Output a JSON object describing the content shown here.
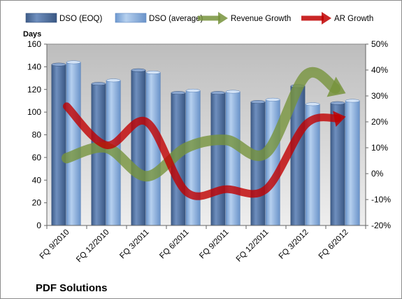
{
  "chart_data": {
    "type": "bar",
    "title": "PDF Solutions",
    "ylabel_left": "Days",
    "ylim_left": [
      0,
      160
    ],
    "yticks_left": [
      "0",
      "20",
      "40",
      "60",
      "80",
      "100",
      "120",
      "140",
      "160"
    ],
    "ylim_right": [
      -0.2,
      0.5
    ],
    "yticks_right": [
      "-20%",
      "-10%",
      "0%",
      "10%",
      "20%",
      "30%",
      "40%",
      "50%"
    ],
    "legend_position": "top",
    "grid": false,
    "categories": [
      "FQ 9/2010",
      "FQ 12/2010",
      "FQ 3/2011",
      "FQ 6/2011",
      "FQ 9/2011",
      "FQ 12/2011",
      "FQ 3/2012",
      "FQ 6/2012"
    ],
    "series": [
      {
        "name": "DSO (EOQ)",
        "type": "bar",
        "axis": "left",
        "color": "#4f6f9f",
        "values": [
          142,
          125,
          137,
          117,
          117,
          109,
          123,
          108
        ]
      },
      {
        "name": "DSO (average)",
        "type": "bar",
        "axis": "left",
        "color": "#8db3e2",
        "values": [
          144,
          128,
          135,
          119,
          118,
          111,
          107,
          110
        ]
      },
      {
        "name": "Revenue Growth",
        "type": "line",
        "axis": "right",
        "color": "#77933c",
        "values": [
          0.06,
          0.1,
          -0.01,
          0.1,
          0.13,
          0.08,
          0.38,
          0.31
        ]
      },
      {
        "name": "AR Growth",
        "type": "line",
        "axis": "right",
        "color": "#c00000",
        "values": [
          0.26,
          0.11,
          0.2,
          -0.07,
          -0.06,
          -0.06,
          0.19,
          0.22
        ]
      }
    ]
  }
}
